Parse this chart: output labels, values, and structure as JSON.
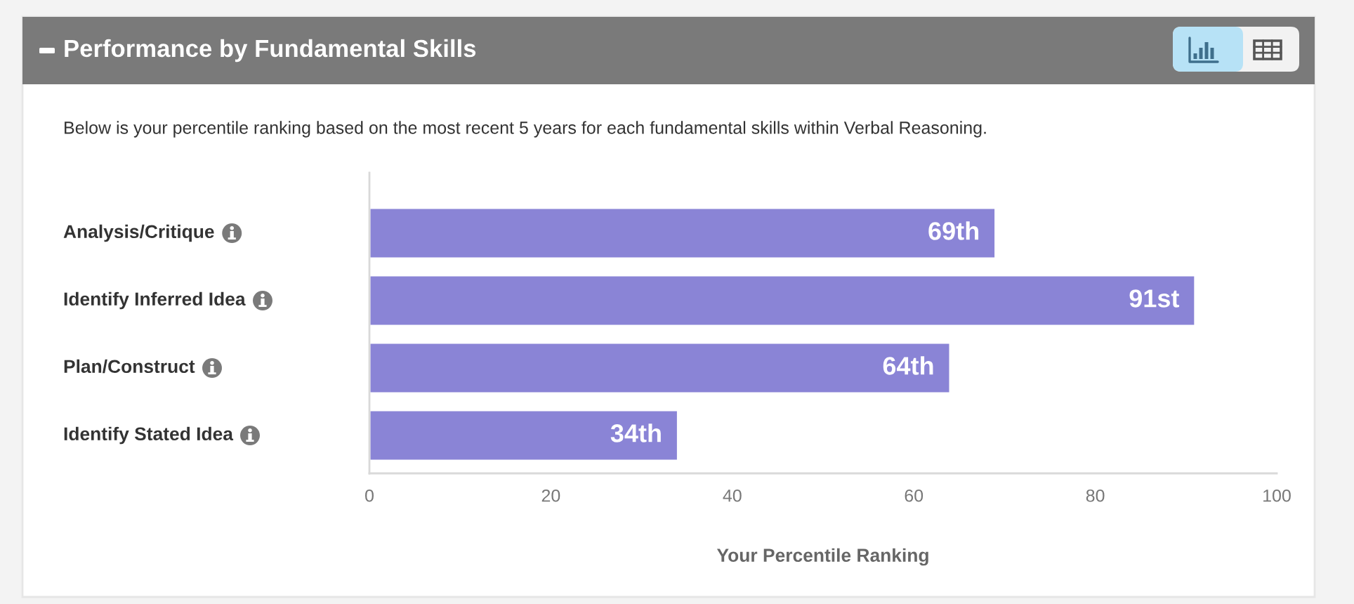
{
  "chart_data": {
    "type": "bar",
    "orientation": "horizontal",
    "title": "Performance by Fundamental Skills",
    "subtitle": "Below is your percentile ranking based on the most recent 5 years for each fundamental skills within Verbal Reasoning.",
    "xlabel": "Your Percentile Ranking",
    "categories": [
      "Analysis/Critique",
      "Identify Inferred Idea",
      "Plan/Construct",
      "Identify Stated Idea"
    ],
    "values": [
      69,
      91,
      64,
      34
    ],
    "value_labels": [
      "69th",
      "91st",
      "64th",
      "34th"
    ],
    "color": "#8a84d6",
    "xlim": [
      0,
      100
    ],
    "xticks": [
      0,
      20,
      40,
      60,
      80,
      100
    ]
  }
}
